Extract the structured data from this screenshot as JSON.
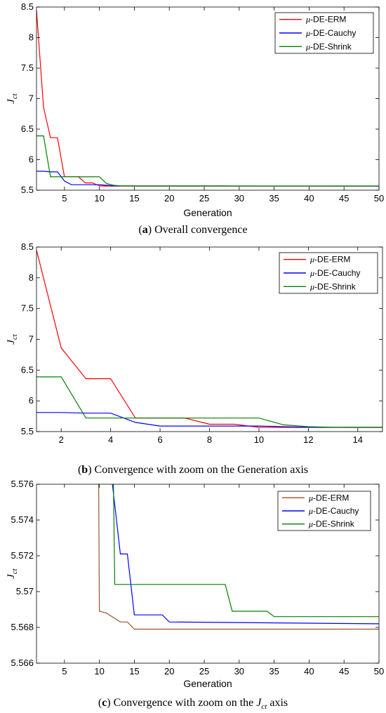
{
  "chart_data": [
    {
      "type": "line",
      "caption": {
        "paren_open": "(",
        "letter": "a",
        "paren_close": ")",
        "text": " Overall convergence"
      },
      "xlabel": "Generation",
      "ylabel": {
        "base": "J",
        "sub": "ct"
      },
      "xlim": [
        1,
        50
      ],
      "ylim": [
        5.5,
        8.5
      ],
      "xticks": [
        5,
        10,
        15,
        20,
        25,
        30,
        35,
        40,
        45,
        50
      ],
      "yticks": [
        5.5,
        6,
        6.5,
        7,
        7.5,
        8,
        8.5
      ],
      "ytick_labels": [
        "5.5",
        "6",
        "6.5",
        "7",
        "7.5",
        "8",
        "8.5"
      ],
      "legend_position": "top-right",
      "series": [
        {
          "name": "μ-DE-ERM",
          "color": "#ff0000",
          "points": [
            [
              1,
              8.45
            ],
            [
              2,
              6.86
            ],
            [
              3,
              6.36
            ],
            [
              4,
              6.36
            ],
            [
              5,
              5.72
            ],
            [
              6,
              5.72
            ],
            [
              7,
              5.72
            ],
            [
              8,
              5.62
            ],
            [
              9,
              5.62
            ],
            [
              10,
              5.57
            ],
            [
              11,
              5.568
            ],
            [
              50,
              5.568
            ]
          ]
        },
        {
          "name": "μ-DE-Cauchy",
          "color": "#0000ff",
          "points": [
            [
              1,
              5.81
            ],
            [
              2,
              5.81
            ],
            [
              3,
              5.8
            ],
            [
              4,
              5.8
            ],
            [
              5,
              5.65
            ],
            [
              6,
              5.59
            ],
            [
              10,
              5.59
            ],
            [
              11,
              5.58
            ],
            [
              12,
              5.57
            ],
            [
              15,
              5.569
            ],
            [
              50,
              5.568
            ]
          ]
        },
        {
          "name": "μ-DE-Shrink",
          "color": "#008000",
          "points": [
            [
              1,
              6.39
            ],
            [
              2,
              6.39
            ],
            [
              3,
              5.72
            ],
            [
              10,
              5.72
            ],
            [
              11,
              5.61
            ],
            [
              12,
              5.58
            ],
            [
              13,
              5.57
            ],
            [
              28,
              5.57
            ],
            [
              29,
              5.569
            ],
            [
              50,
              5.569
            ]
          ]
        }
      ]
    },
    {
      "type": "line",
      "caption": {
        "paren_open": "(",
        "letter": "b",
        "paren_close": ")",
        "text": " Convergence with zoom on the Generation axis"
      },
      "xlabel": "",
      "ylabel": {
        "base": "J",
        "sub": "ct"
      },
      "xlim": [
        1,
        15
      ],
      "ylim": [
        5.5,
        8.5
      ],
      "xticks": [
        2,
        4,
        6,
        8,
        10,
        12,
        14
      ],
      "yticks": [
        5.5,
        6,
        6.5,
        7,
        7.5,
        8,
        8.5
      ],
      "ytick_labels": [
        "5.5",
        "6",
        "6.5",
        "7",
        "7.5",
        "8",
        "8.5"
      ],
      "legend_position": "top-right",
      "series": [
        {
          "name": "μ-DE-ERM",
          "color": "#ff0000",
          "points": [
            [
              1,
              8.45
            ],
            [
              2,
              6.86
            ],
            [
              3,
              6.36
            ],
            [
              4,
              6.36
            ],
            [
              5,
              5.72
            ],
            [
              7,
              5.72
            ],
            [
              8,
              5.62
            ],
            [
              9,
              5.62
            ],
            [
              10,
              5.57
            ],
            [
              11,
              5.568
            ],
            [
              15,
              5.568
            ]
          ]
        },
        {
          "name": "μ-DE-Cauchy",
          "color": "#0000ff",
          "points": [
            [
              1,
              5.81
            ],
            [
              2,
              5.81
            ],
            [
              3,
              5.8
            ],
            [
              4,
              5.8
            ],
            [
              5,
              5.65
            ],
            [
              6,
              5.59
            ],
            [
              10,
              5.59
            ],
            [
              11,
              5.58
            ],
            [
              12,
              5.57
            ],
            [
              15,
              5.569
            ]
          ]
        },
        {
          "name": "μ-DE-Shrink",
          "color": "#008000",
          "points": [
            [
              1,
              6.39
            ],
            [
              2,
              6.39
            ],
            [
              3,
              5.72
            ],
            [
              10,
              5.72
            ],
            [
              11,
              5.61
            ],
            [
              12,
              5.58
            ],
            [
              13,
              5.57
            ],
            [
              15,
              5.57
            ]
          ]
        }
      ]
    },
    {
      "type": "line",
      "caption": {
        "prefix": "(",
        "letter": "c",
        "middle": ") Convergence with zoom on the ",
        "j": "J",
        "sub": "ct",
        "suffix": " axis"
      },
      "xlabel": "Generation",
      "ylabel": {
        "base": "J",
        "sub": "ct"
      },
      "xlim": [
        1,
        50
      ],
      "ylim": [
        5.566,
        5.576
      ],
      "xticks": [
        5,
        10,
        15,
        20,
        25,
        30,
        35,
        40,
        45,
        50
      ],
      "yticks": [
        5.566,
        5.568,
        5.57,
        5.572,
        5.574,
        5.576
      ],
      "ytick_labels": [
        "5.566",
        "5.568",
        "5.57",
        "5.572",
        "5.574",
        "5.576"
      ],
      "legend_position": "top-right",
      "series": [
        {
          "name": "μ-DE-ERM",
          "color": "#a0522d",
          "points": [
            [
              9.9,
              5.5762
            ],
            [
              10,
              5.5689
            ],
            [
              11,
              5.5688
            ],
            [
              13,
              5.5683
            ],
            [
              14,
              5.5683
            ],
            [
              15,
              5.5679
            ],
            [
              50,
              5.5679
            ]
          ]
        },
        {
          "name": "μ-DE-Cauchy",
          "color": "#0000ff",
          "points": [
            [
              11.8,
              5.5762
            ],
            [
              12,
              5.5755
            ],
            [
              13,
              5.5721
            ],
            [
              14,
              5.5721
            ],
            [
              15,
              5.5687
            ],
            [
              19,
              5.5687
            ],
            [
              20,
              5.5683
            ],
            [
              50,
              5.5682
            ]
          ]
        },
        {
          "name": "μ-DE-Shrink",
          "color": "#008000",
          "points": [
            [
              12,
              5.5762
            ],
            [
              12.2,
              5.5704
            ],
            [
              28,
              5.5704
            ],
            [
              29,
              5.5689
            ],
            [
              34,
              5.5689
            ],
            [
              35,
              5.5686
            ],
            [
              50,
              5.5686
            ]
          ]
        }
      ]
    }
  ]
}
